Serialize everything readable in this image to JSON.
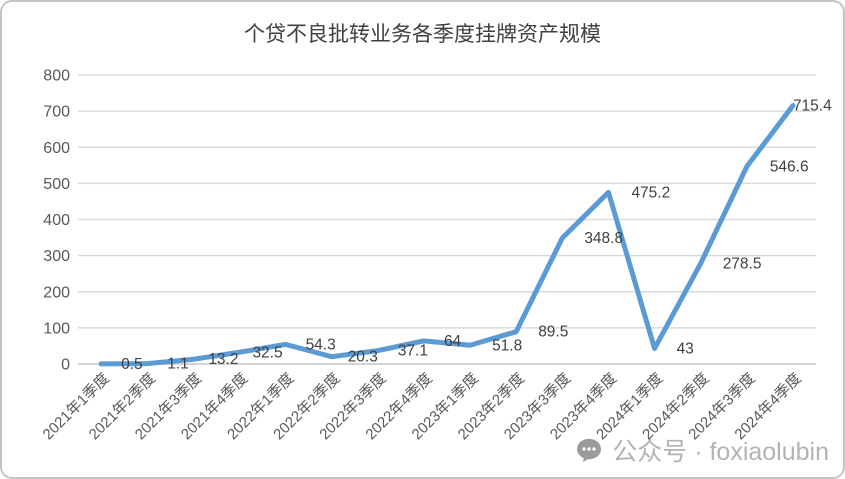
{
  "chart_data": {
    "type": "line",
    "title": "个贷不良批转业务各季度挂牌资产规模",
    "categories": [
      "2021年1季度",
      "2021年2季度",
      "2021年3季度",
      "2021年4季度",
      "2022年1季度",
      "2022年2季度",
      "2022年3季度",
      "2022年4季度",
      "2023年1季度",
      "2023年2季度",
      "2023年3季度",
      "2023年4季度",
      "2024年1季度",
      "2024年2季度",
      "2024年3季度",
      "2024年4季度"
    ],
    "values": [
      0.5,
      1.1,
      13.2,
      32.5,
      54.3,
      20.3,
      37.1,
      64,
      51.8,
      89.5,
      348.8,
      475.2,
      43,
      278.5,
      546.6,
      715.4
    ],
    "xlabel": "",
    "ylabel": "",
    "ylim": [
      0,
      800
    ],
    "ytick_step": 100,
    "grid": true,
    "legend": "none",
    "data_labels": true,
    "colors": {
      "line": "#5B9BD5",
      "gridline": "#D9D9D9",
      "axis_line": "#C6C6C6",
      "axis_text": "#595959",
      "data_label_text": "#404040",
      "title_text": "#404040"
    }
  },
  "watermark": {
    "icon": "wechat-icon",
    "text": "公众号 · foxiaolubin"
  }
}
